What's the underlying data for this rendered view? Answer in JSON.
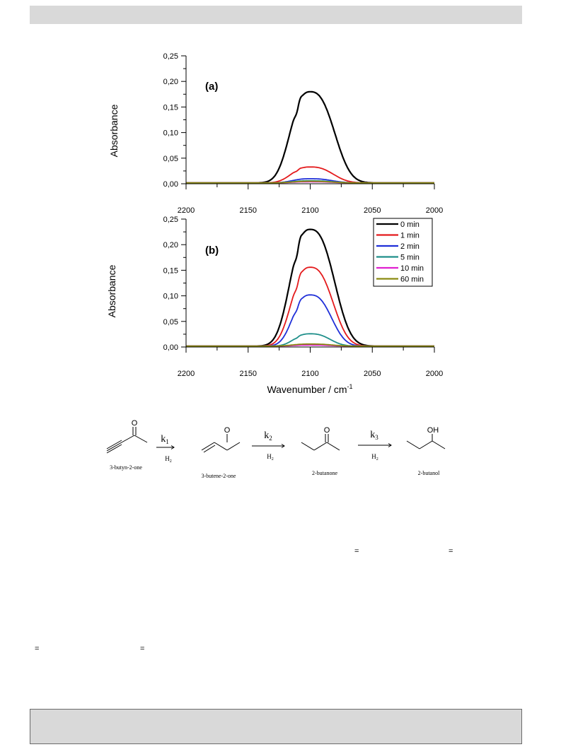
{
  "chart_data": [
    {
      "type": "line",
      "panel_label": "(a)",
      "xlabel": "",
      "ylabel": "Absorbance",
      "xlim": [
        2200,
        2000
      ],
      "ylim": [
        0,
        0.25
      ],
      "x_ticks": [
        "2200",
        "2150",
        "2100",
        "2050",
        "2000"
      ],
      "y_ticks": [
        "0,00",
        "0,05",
        "0,10",
        "0,15",
        "0,20",
        "0,25"
      ],
      "series": [
        {
          "color": "#000000",
          "peak_x": 2100,
          "peak_y": 0.178,
          "width": 16
        },
        {
          "color": "#e41a1c",
          "peak_x": 2100,
          "peak_y": 0.031,
          "width": 15
        },
        {
          "color": "#1f2fd8",
          "peak_x": 2100,
          "peak_y": 0.008,
          "width": 14
        },
        {
          "color": "#1f8f8a",
          "peak_x": 2100,
          "peak_y": 0.004,
          "width": 14
        },
        {
          "color": "#e020d0",
          "peak_x": 2100,
          "peak_y": 0.002,
          "width": 14
        },
        {
          "color": "#8a8a10",
          "peak_x": 2100,
          "peak_y": 0.003,
          "width": 14
        }
      ]
    },
    {
      "type": "line",
      "panel_label": "(b)",
      "xlabel": "Wavenumber / cm",
      "xlabel_sup": "-1",
      "ylabel": "Absorbance",
      "xlim": [
        2200,
        2000
      ],
      "ylim": [
        0,
        0.25
      ],
      "x_ticks": [
        "2200",
        "2150",
        "2100",
        "2050",
        "2000"
      ],
      "y_ticks": [
        "0,00",
        "0,05",
        "0,10",
        "0,15",
        "0,20",
        "0,25"
      ],
      "legend_position": "top-right",
      "series": [
        {
          "name": "0 min",
          "color": "#000000",
          "peak_x": 2100,
          "peak_y": 0.228,
          "width": 16
        },
        {
          "name": "1 min",
          "color": "#e41a1c",
          "peak_x": 2100,
          "peak_y": 0.154,
          "width": 15
        },
        {
          "name": "2 min",
          "color": "#1f2fd8",
          "peak_x": 2100,
          "peak_y": 0.1,
          "width": 14
        },
        {
          "name": "5 min",
          "color": "#1f8f8a",
          "peak_x": 2100,
          "peak_y": 0.024,
          "width": 13
        },
        {
          "name": "10 min",
          "color": "#e020d0",
          "peak_x": 2100,
          "peak_y": 0.002,
          "width": 13
        },
        {
          "name": "60 min",
          "color": "#8a8a10",
          "peak_x": 2100,
          "peak_y": 0.004,
          "width": 14
        }
      ]
    }
  ],
  "scheme": {
    "steps": [
      {
        "k": "k",
        "k_sub": "1",
        "reagent": "H",
        "reagent_sub": "2"
      },
      {
        "k": "k",
        "k_sub": "2",
        "reagent": "H",
        "reagent_sub": "2"
      },
      {
        "k": "k",
        "k_sub": "3",
        "reagent": "H",
        "reagent_sub": "2"
      }
    ],
    "compounds": [
      "3-butyn-2-one",
      "3-butene-2-one",
      "2-butanone",
      "2-butanol"
    ],
    "atom_o": "O",
    "atom_oh": "OH"
  },
  "equals_marks": [
    "=",
    "=",
    "=",
    "="
  ]
}
